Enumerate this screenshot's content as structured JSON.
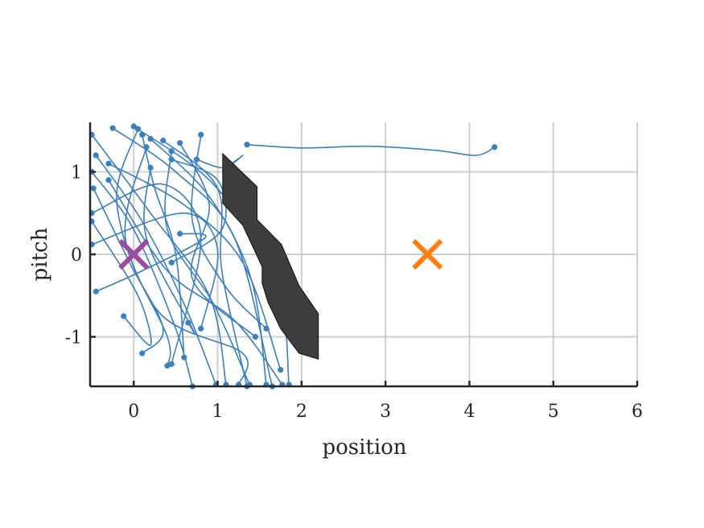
{
  "chart_data": {
    "type": "line",
    "xlabel": "position",
    "ylabel": "pitch",
    "xlim": [
      -0.52,
      6
    ],
    "ylim": [
      -1.6,
      1.6
    ],
    "xticks": [
      0,
      1,
      2,
      3,
      4,
      5,
      6
    ],
    "yticks": [
      -1,
      0,
      1
    ],
    "xtick_labels": [
      "0",
      "1",
      "2",
      "3",
      "4",
      "5",
      "6"
    ],
    "ytick_labels": [
      "-1",
      "0",
      "1"
    ],
    "grid": true,
    "colors": {
      "trajectory": "#3a7fbf",
      "start_marker": "#9b4b9e",
      "goal_marker": "#ff7f0e",
      "obstacle": "#3d3d3d"
    },
    "obstacle": {
      "polygon": [
        [
          1.06,
          1.22
        ],
        [
          1.47,
          0.82
        ],
        [
          1.47,
          0.42
        ],
        [
          1.76,
          0.12
        ],
        [
          1.97,
          -0.38
        ],
        [
          2.2,
          -0.72
        ],
        [
          2.2,
          -1.27
        ],
        [
          1.97,
          -1.2
        ],
        [
          1.75,
          -0.9
        ],
        [
          1.6,
          -0.58
        ],
        [
          1.53,
          -0.35
        ],
        [
          1.53,
          -0.15
        ],
        [
          1.3,
          0.35
        ],
        [
          1.06,
          0.62
        ]
      ]
    },
    "markers": [
      {
        "name": "start",
        "symbol": "x",
        "x": 0.0,
        "y": 0.0
      },
      {
        "name": "goal",
        "symbol": "x",
        "x": 3.5,
        "y": 0.0
      }
    ],
    "trajectories": [
      [
        [
          1.35,
          1.33
        ],
        [
          2.0,
          1.29
        ],
        [
          2.8,
          1.31
        ],
        [
          3.6,
          1.26
        ],
        [
          4.08,
          1.2
        ],
        [
          4.3,
          1.3
        ]
      ],
      [
        [
          0.0,
          1.55
        ],
        [
          0.95,
          0.85
        ],
        [
          1.7,
          -0.3
        ],
        [
          1.85,
          -1.58
        ]
      ],
      [
        [
          -0.25,
          1.53
        ],
        [
          0.5,
          1.0
        ],
        [
          1.2,
          0.2
        ],
        [
          1.65,
          -1.6
        ]
      ],
      [
        [
          0.05,
          1.52
        ],
        [
          -0.2,
          0.6
        ],
        [
          0.3,
          -0.7
        ],
        [
          1.3,
          -1.2
        ],
        [
          1.25,
          -1.58
        ]
      ],
      [
        [
          -0.5,
          1.45
        ],
        [
          0.2,
          0.5
        ],
        [
          0.9,
          -0.5
        ],
        [
          1.1,
          -1.58
        ]
      ],
      [
        [
          -0.45,
          1.2
        ],
        [
          0.1,
          0.4
        ],
        [
          0.6,
          -0.6
        ],
        [
          0.98,
          -1.58
        ]
      ],
      [
        [
          -0.5,
          1.0
        ],
        [
          0.0,
          0.3
        ],
        [
          0.5,
          -0.9
        ],
        [
          0.7,
          -1.6
        ]
      ],
      [
        [
          0.2,
          1.4
        ],
        [
          0.9,
          0.7
        ],
        [
          1.4,
          -0.3
        ],
        [
          1.58,
          -1.58
        ]
      ],
      [
        [
          0.15,
          1.3
        ],
        [
          -0.1,
          0.2
        ],
        [
          0.4,
          -1.0
        ],
        [
          0.4,
          -1.35
        ]
      ],
      [
        [
          -0.48,
          0.8
        ],
        [
          -0.05,
          -0.1
        ],
        [
          0.35,
          -0.9
        ],
        [
          0.1,
          -1.2
        ]
      ],
      [
        [
          0.35,
          1.38
        ],
        [
          1.0,
          0.8
        ],
        [
          1.05,
          -0.2
        ],
        [
          1.35,
          -1.6
        ]
      ],
      [
        [
          -0.5,
          0.4
        ],
        [
          0.05,
          -0.5
        ],
        [
          0.2,
          -1.1
        ],
        [
          -0.12,
          -0.75
        ]
      ],
      [
        [
          0.45,
          1.25
        ],
        [
          0.4,
          0.3
        ],
        [
          0.95,
          -0.6
        ],
        [
          1.38,
          -1.58
        ]
      ],
      [
        [
          -0.3,
          1.1
        ],
        [
          0.6,
          0.6
        ],
        [
          1.3,
          -0.1
        ],
        [
          1.75,
          -1.4
        ]
      ],
      [
        [
          0.2,
          1.05
        ],
        [
          0.15,
          0.2
        ],
        [
          0.7,
          -0.9
        ],
        [
          0.65,
          -0.83
        ]
      ],
      [
        [
          -0.5,
          0.5
        ],
        [
          0.35,
          0.85
        ],
        [
          0.8,
          0.2
        ],
        [
          0.45,
          -1.33
        ]
      ],
      [
        [
          0.55,
          1.35
        ],
        [
          0.9,
          0.6
        ],
        [
          0.7,
          -0.3
        ],
        [
          1.45,
          -1.0
        ]
      ],
      [
        [
          -0.5,
          0.12
        ],
        [
          0.6,
          0.5
        ],
        [
          1.0,
          0.05
        ],
        [
          0.8,
          -0.9
        ]
      ],
      [
        [
          0.1,
          1.45
        ],
        [
          0.25,
          0.8
        ],
        [
          0.5,
          0.0
        ],
        [
          0.6,
          -1.25
        ]
      ],
      [
        [
          0.8,
          1.45
        ],
        [
          0.7,
          0.4
        ],
        [
          1.1,
          -0.4
        ],
        [
          1.58,
          -0.9
        ]
      ],
      [
        [
          -0.3,
          0.9
        ],
        [
          0.4,
          -0.2
        ],
        [
          1.2,
          -0.8
        ],
        [
          1.77,
          -1.58
        ]
      ],
      [
        [
          0.45,
          1.15
        ],
        [
          1.0,
          0.9
        ],
        [
          1.05,
          0.3
        ],
        [
          0.45,
          -0.1
        ]
      ],
      [
        [
          -0.45,
          -0.45
        ],
        [
          0.1,
          -0.2
        ],
        [
          0.85,
          0.2
        ],
        [
          0.55,
          0.25
        ]
      ],
      [
        [
          0.75,
          1.15
        ],
        [
          1.07,
          1.05
        ],
        [
          1.3,
          1.2
        ],
        [
          1.1,
          1.05
        ]
      ]
    ]
  }
}
